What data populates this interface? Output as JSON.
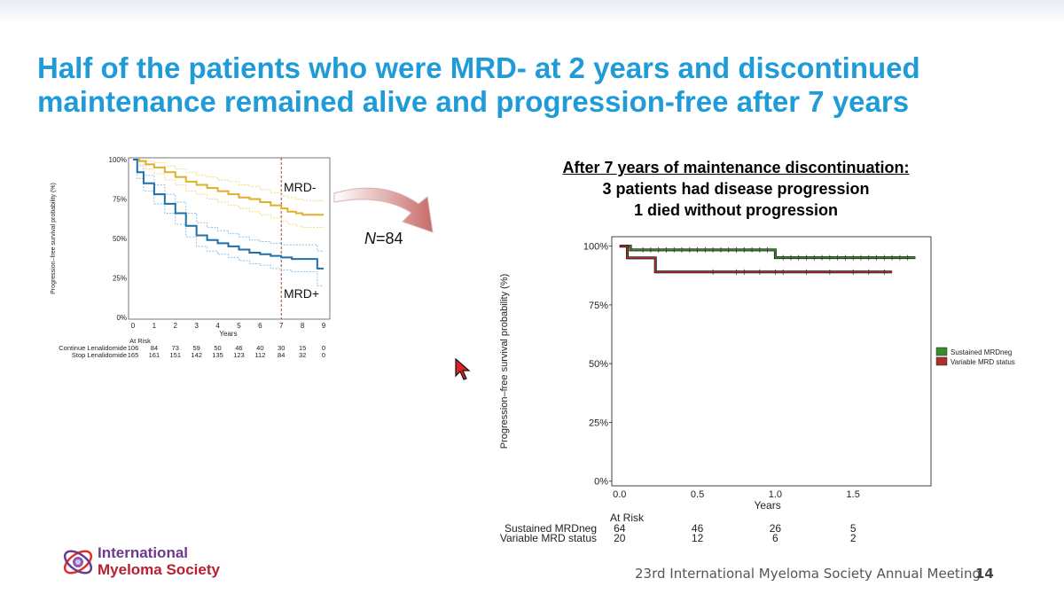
{
  "slide": {
    "title_line1": "Half of the patients who were MRD- at 2 years and discontinued",
    "title_line2": "maintenance remained alive and progression-free after 7 years",
    "n_label_prefix": "N",
    "n_label_value": "=84",
    "callout_line1": "After 7 years of maintenance discontinuation:",
    "callout_line2": "3 patients had disease progression",
    "callout_line3": "1 died without progression",
    "footer": "23rd International Myeloma Society Annual Meeting",
    "page_number": "14",
    "logo_line1": "International",
    "logo_line2": "Myeloma Society",
    "title_color": "#1f9bd7"
  },
  "chart_data": [
    {
      "type": "line",
      "title": "",
      "xlabel": "Years",
      "ylabel": "Progression–free survival probability (%)",
      "x_ticks": [
        "0",
        "1",
        "2",
        "3",
        "4",
        "5",
        "6",
        "7",
        "8",
        "9"
      ],
      "y_ticks": [
        "0%",
        "25%",
        "50%",
        "75%",
        "100%"
      ],
      "xlim": [
        0,
        9
      ],
      "ylim": [
        0,
        100
      ],
      "vline_x": 7,
      "annotations": [
        "MRD-",
        "MRD+"
      ],
      "series": [
        {
          "color": "#e0b02a",
          "x": [
            0,
            0.3,
            0.6,
            1,
            1.5,
            2,
            2.5,
            3,
            3.5,
            4,
            4.5,
            5,
            5.5,
            6,
            6.5,
            7,
            7.3,
            7.7,
            8,
            8.5,
            9
          ],
          "values": [
            100,
            99,
            97,
            95,
            92,
            89,
            86,
            84,
            82,
            80,
            78,
            76,
            75,
            73,
            71,
            69,
            67,
            66,
            65,
            65,
            65
          ],
          "ci_upper": [
            100,
            100,
            99,
            98,
            96,
            94,
            92,
            90,
            89,
            87,
            86,
            84,
            83,
            81,
            79,
            77,
            76,
            75,
            74,
            74,
            73
          ],
          "ci_lower": [
            100,
            97,
            94,
            91,
            87,
            84,
            80,
            78,
            75,
            73,
            71,
            69,
            67,
            65,
            63,
            61,
            59,
            58,
            57,
            57,
            57
          ]
        },
        {
          "color": "#1f6fa8",
          "x": [
            0,
            0.2,
            0.5,
            1,
            1.5,
            2,
            2.5,
            3,
            3.5,
            4,
            4.5,
            5,
            5.5,
            6,
            6.5,
            7,
            7.5,
            8,
            8.6,
            8.7,
            9
          ],
          "values": [
            100,
            92,
            85,
            78,
            72,
            66,
            58,
            52,
            49,
            47,
            45,
            43,
            41,
            40,
            39,
            38,
            37,
            37,
            37,
            31,
            31
          ],
          "ci_upper": [
            100,
            96,
            90,
            84,
            78,
            73,
            66,
            60,
            57,
            55,
            53,
            51,
            49,
            48,
            47,
            46,
            46,
            46,
            46,
            42,
            42
          ],
          "ci_lower": [
            100,
            88,
            80,
            72,
            66,
            59,
            51,
            45,
            42,
            40,
            38,
            36,
            34,
            33,
            31,
            30,
            29,
            29,
            29,
            20,
            20
          ]
        }
      ],
      "at_risk": {
        "header": "At Risk",
        "rows": [
          {
            "label": "Continue Lenalidomide",
            "values": [
              "106",
              "84",
              "73",
              "59",
              "50",
              "46",
              "40",
              "30",
              "15",
              "0"
            ]
          },
          {
            "label": "Stop Lenalidomide",
            "values": [
              "165",
              "161",
              "151",
              "142",
              "135",
              "123",
              "112",
              "84",
              "32",
              "0"
            ]
          }
        ]
      }
    },
    {
      "type": "line",
      "title": "",
      "xlabel": "Years",
      "ylabel": "Progression–free survival probability (%)",
      "x_ticks": [
        "0.0",
        "0.5",
        "1.0",
        "1.5"
      ],
      "y_ticks": [
        "0%",
        "25%",
        "50%",
        "75%",
        "100%"
      ],
      "xlim": [
        -0.05,
        2.0
      ],
      "ylim": [
        -2,
        104
      ],
      "legend_position": "right",
      "series": [
        {
          "name": "Sustained MRDneg",
          "color": "#3b8a2e",
          "x": [
            0,
            0.06,
            0.07,
            1.0,
            1.0,
            1.9
          ],
          "values": [
            100,
            100,
            98.4,
            98.4,
            95.1,
            95.1
          ],
          "censor_x": [
            0.15,
            0.2,
            0.25,
            0.3,
            0.35,
            0.4,
            0.45,
            0.5,
            0.55,
            0.6,
            0.65,
            0.7,
            0.75,
            0.8,
            0.85,
            0.9,
            0.95,
            1.05,
            1.1,
            1.15,
            1.2,
            1.25,
            1.3,
            1.35,
            1.4,
            1.45,
            1.5,
            1.55,
            1.6,
            1.65,
            1.7,
            1.75,
            1.8,
            1.85
          ]
        },
        {
          "name": "Variable MRD status",
          "color": "#a8322a",
          "x": [
            0,
            0.04,
            0.05,
            0.22,
            0.23,
            1.75
          ],
          "values": [
            100,
            100,
            95,
            95,
            89,
            89
          ],
          "censor_x": [
            0.6,
            0.75,
            0.8,
            0.9,
            1.0,
            1.05,
            1.2,
            1.35,
            1.5,
            1.6,
            1.7
          ]
        }
      ],
      "at_risk": {
        "header": "At Risk",
        "rows": [
          {
            "label": "Sustained MRDneg",
            "values": [
              "64",
              "46",
              "26",
              "5"
            ]
          },
          {
            "label": "Variable MRD status",
            "values": [
              "20",
              "12",
              "6",
              "2"
            ]
          }
        ]
      }
    }
  ]
}
